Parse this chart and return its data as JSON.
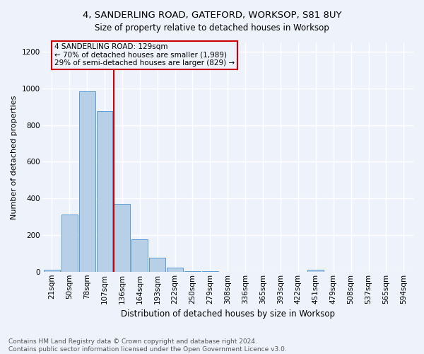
{
  "title": "4, SANDERLING ROAD, GATEFORD, WORKSOP, S81 8UY",
  "subtitle": "Size of property relative to detached houses in Worksop",
  "xlabel": "Distribution of detached houses by size in Worksop",
  "ylabel": "Number of detached properties",
  "bar_labels": [
    "21sqm",
    "50sqm",
    "78sqm",
    "107sqm",
    "136sqm",
    "164sqm",
    "193sqm",
    "222sqm",
    "250sqm",
    "279sqm",
    "308sqm",
    "336sqm",
    "365sqm",
    "393sqm",
    "422sqm",
    "451sqm",
    "479sqm",
    "508sqm",
    "537sqm",
    "565sqm",
    "594sqm"
  ],
  "bar_values": [
    10,
    310,
    985,
    875,
    370,
    175,
    75,
    22,
    3,
    2,
    1,
    0,
    0,
    0,
    0,
    10,
    0,
    0,
    0,
    0,
    0
  ],
  "bar_color": "#b8cfe8",
  "bar_edge_color": "#5b9bd5",
  "vline_color": "#cc0000",
  "ylim": [
    0,
    1250
  ],
  "yticks": [
    0,
    200,
    400,
    600,
    800,
    1000,
    1200
  ],
  "annotation_text": "4 SANDERLING ROAD: 129sqm\n← 70% of detached houses are smaller (1,989)\n29% of semi-detached houses are larger (829) →",
  "annotation_box_edge": "#cc0000",
  "footer": "Contains HM Land Registry data © Crown copyright and database right 2024.\nContains public sector information licensed under the Open Government Licence v3.0.",
  "background_color": "#eef2fa",
  "grid_color": "#ffffff",
  "title_fontsize": 9.5,
  "subtitle_fontsize": 8.5,
  "ylabel_fontsize": 8,
  "xlabel_fontsize": 8.5,
  "tick_fontsize": 7.5,
  "footer_fontsize": 6.5,
  "annotation_fontsize": 7.5
}
